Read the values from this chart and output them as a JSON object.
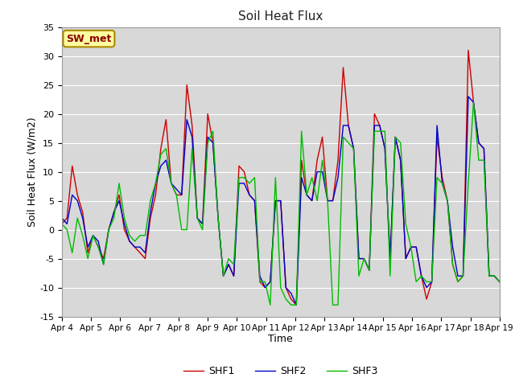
{
  "title": "Soil Heat Flux",
  "xlabel": "Time",
  "ylabel": "Soil Heat Flux (W/m2)",
  "ylim": [
    -15,
    35
  ],
  "xlim": [
    0,
    360
  ],
  "fig_bg": "#ffffff",
  "plot_bg": "#d8d8d8",
  "grid_color": "#ffffff",
  "shf1_color": "#cc0000",
  "shf2_color": "#0000cc",
  "shf3_color": "#00bb00",
  "legend_label1": "SHF1",
  "legend_label2": "SHF2",
  "legend_label3": "SHF3",
  "annotation_text": "SW_met",
  "annotation_color": "#8b0000",
  "annotation_bg": "#ffffa0",
  "annotation_edge": "#aa8800",
  "xtick_labels": [
    "Apr 4",
    "Apr 5",
    "Apr 6",
    "Apr 7",
    "Apr 8",
    "Apr 9",
    "Apr 10",
    "Apr 11",
    "Apr 12",
    "Apr 13",
    "Apr 14",
    "Apr 15",
    "Apr 16",
    "Apr 17",
    "Apr 18",
    "Apr 19"
  ],
  "xtick_positions": [
    0,
    24,
    48,
    72,
    96,
    120,
    144,
    168,
    192,
    216,
    240,
    264,
    288,
    312,
    336,
    360
  ],
  "ytick_positions": [
    -15,
    -10,
    -5,
    0,
    5,
    10,
    15,
    20,
    25,
    30,
    35
  ],
  "shf1": [
    1,
    2,
    11,
    6,
    3,
    -4,
    -1,
    -3,
    -5,
    0,
    3,
    6,
    0,
    -2,
    -3,
    -4,
    -5,
    2,
    6,
    14,
    19,
    8,
    6,
    6,
    25,
    18,
    2,
    1,
    20,
    15,
    2,
    -8,
    -6,
    -8,
    11,
    10,
    6,
    5,
    -9,
    -10,
    -9,
    5,
    5,
    -10,
    -12,
    -13,
    12,
    6,
    5,
    12,
    16,
    5,
    5,
    12,
    28,
    18,
    14,
    -5,
    -5,
    -7,
    20,
    18,
    14,
    -5,
    16,
    12,
    -5,
    -3,
    -3,
    -8,
    -12,
    -9,
    16,
    9,
    5,
    -6,
    -9,
    -8,
    31,
    22,
    15,
    14,
    -8,
    -8,
    -9
  ],
  "shf2": [
    2,
    1,
    6,
    5,
    2,
    -3,
    -1,
    -2,
    -6,
    0,
    3,
    5,
    1,
    -2,
    -3,
    -3,
    -4,
    3,
    8,
    11,
    12,
    8,
    7,
    6,
    19,
    16,
    2,
    1,
    16,
    15,
    2,
    -8,
    -6,
    -8,
    8,
    8,
    6,
    5,
    -8,
    -10,
    -9,
    5,
    5,
    -10,
    -11,
    -13,
    9,
    6,
    5,
    10,
    10,
    5,
    5,
    9,
    18,
    18,
    14,
    -5,
    -5,
    -7,
    18,
    18,
    14,
    -5,
    16,
    12,
    -5,
    -3,
    -3,
    -8,
    -10,
    -9,
    18,
    8,
    5,
    -3,
    -8,
    -8,
    23,
    22,
    15,
    14,
    -8,
    -8,
    -9
  ],
  "shf3": [
    1,
    0,
    -4,
    2,
    -1,
    -5,
    -1,
    -3,
    -6,
    0,
    2,
    8,
    2,
    -1,
    -2,
    -1,
    -1,
    5,
    8,
    13,
    14,
    8,
    6,
    0,
    0,
    14,
    2,
    0,
    15,
    17,
    2,
    -8,
    -5,
    -6,
    9,
    9,
    8,
    9,
    -9,
    -9,
    -13,
    9,
    -10,
    -12,
    -13,
    -13,
    17,
    6,
    9,
    5,
    12,
    5,
    -13,
    -13,
    16,
    15,
    14,
    -8,
    -5,
    -7,
    17,
    17,
    17,
    -8,
    16,
    15,
    1,
    -3,
    -9,
    -8,
    -9,
    -9,
    9,
    8,
    5,
    -6,
    -9,
    -8,
    8,
    22,
    12,
    12,
    -8,
    -8,
    -9
  ]
}
